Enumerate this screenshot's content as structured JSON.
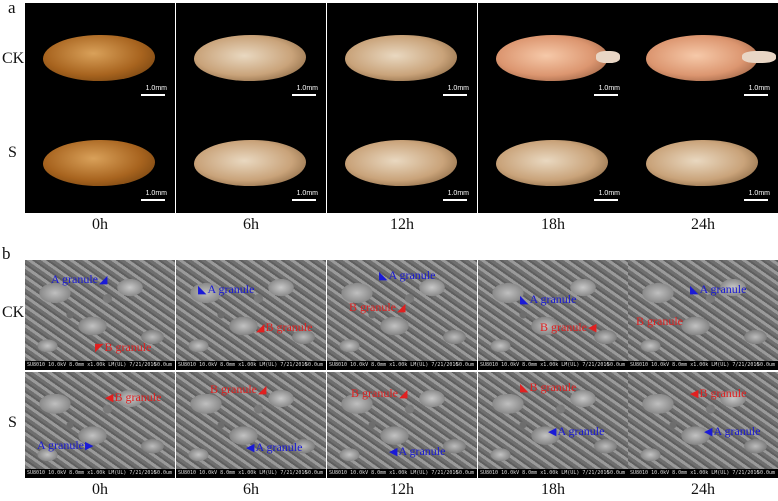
{
  "panel_a": {
    "letter": "a",
    "rows": [
      "CK",
      "S"
    ],
    "columns": [
      "0h",
      "6h",
      "12h",
      "18h",
      "24h"
    ],
    "scale_label": "1.0mm"
  },
  "panel_b": {
    "letter": "b",
    "rows": [
      "CK",
      "S"
    ],
    "columns": [
      "0h",
      "6h",
      "12h",
      "18h",
      "24h"
    ],
    "sem_info": "SU8010 10.0kV 8.0mm x1.00k LM(UL) 7/21/2016",
    "sem_scale": "50.0um",
    "annotations": {
      "a_granule": "A granule",
      "b_granule": "B granule"
    }
  },
  "colors": {
    "a_granule": "#1a1ad6",
    "b_granule": "#e02020"
  }
}
